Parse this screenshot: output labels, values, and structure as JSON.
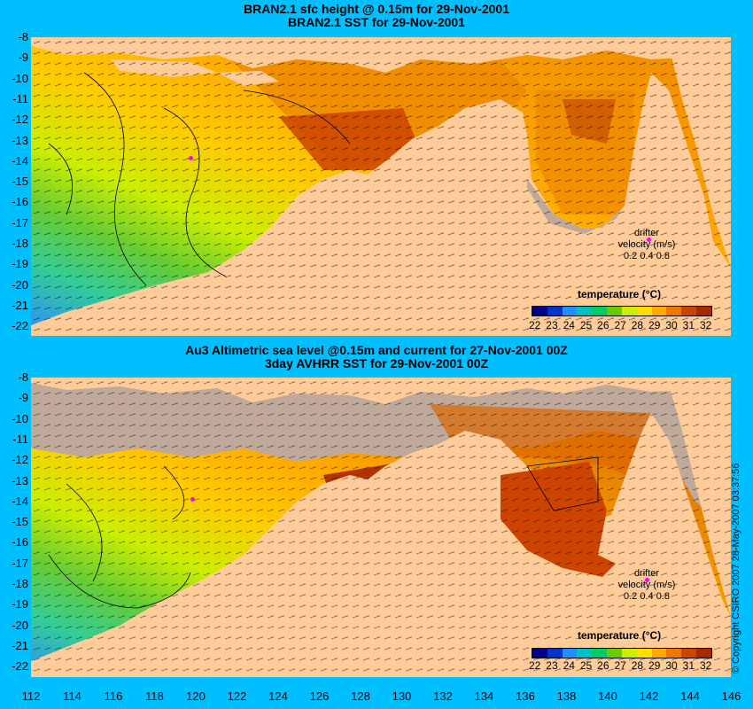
{
  "top_panel": {
    "title_line1": "BRAN2.1 sfc height @ 0.15m for 29-Nov-2001",
    "title_line2": "BRAN2.1 SST for 29-Nov-2001"
  },
  "bottom_panel": {
    "title_line1": "Au3 Altimetric sea level  @0.15m and current for 27-Nov-2001 00Z",
    "title_line2": "3day AVHRR SST for 29-Nov-2001 00Z"
  },
  "y_ticks": [
    "-8",
    "-9",
    "-10",
    "-11",
    "-12",
    "-13",
    "-14",
    "-15",
    "-16",
    "-17",
    "-18",
    "-19",
    "-20",
    "-21",
    "-22"
  ],
  "x_ticks": [
    "112",
    "114",
    "116",
    "118",
    "120",
    "122",
    "124",
    "126",
    "128",
    "130",
    "132",
    "134",
    "136",
    "138",
    "140",
    "142",
    "144",
    "146"
  ],
  "legend": {
    "title": "temperature (°C)",
    "ticks": [
      "22",
      "23",
      "24",
      "25",
      "26",
      "27",
      "28",
      "29",
      "30",
      "31",
      "32"
    ],
    "colors": [
      "#00008b",
      "#0033cc",
      "#1e90ff",
      "#00c0c0",
      "#00cc66",
      "#66cc00",
      "#ccee00",
      "#ffdd00",
      "#ffaa00",
      "#ee7700",
      "#cc4400",
      "#a52a00"
    ]
  },
  "drifter": {
    "title": "drifter",
    "velocity_label": "velocity (m/s)",
    "scale_values": "0.2 0.4 0.8"
  },
  "copyright": "© Copyright CSIRO 2007   28-May-2007 03:37:56",
  "colors": {
    "background": "#00bfff",
    "land": "#ffcc99",
    "no_data": "#bfa99a",
    "drifter": "#ff00ff"
  }
}
